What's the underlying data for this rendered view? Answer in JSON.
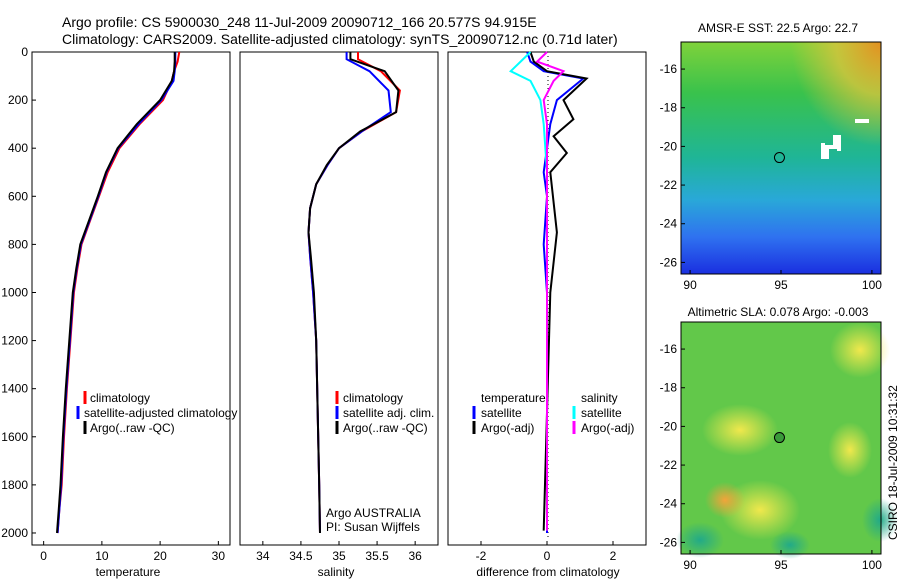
{
  "figure": {
    "title_line1": "Argo profile: CS 5900030_248 11-Jul-2009 20090712_166 20.577S 94.915E",
    "title_line2": "Climatology: CARS2009. Satellite-adjusted climatology: synTS_20090712.nc (0.71d later)",
    "side_stamp": "CSIRO 18-Jul-2009 10:31:32",
    "argo_line1": "Argo AUSTRALIA",
    "argo_line2": "PI: Susan Wijffels"
  },
  "legends": {
    "temp": [
      "climatology",
      "satellite-adjusted climatology",
      "Argo(..raw -QC)"
    ],
    "sal": [
      "climatology",
      "satellite adj. clim.",
      "Argo(..raw -QC)"
    ],
    "diff_t_head": "temperature",
    "diff_s_head": "salinity",
    "diff_t": [
      "satellite",
      "Argo(-adj)"
    ],
    "diff_s": [
      "satellite",
      "Argo(-adj)"
    ]
  },
  "colors": {
    "climatology": "#ff0000",
    "satellite": "#0000ff",
    "argo": "#000000",
    "sal_satellite": "#00ffff",
    "sal_argo": "#ff00ff"
  },
  "chart_data": [
    {
      "type": "line",
      "xlabel": "temperature",
      "ylabel": "",
      "xlim": [
        -2,
        32
      ],
      "ylim": [
        2050,
        0
      ],
      "xticks": [
        0,
        10,
        20,
        30
      ],
      "yticks": [
        0,
        200,
        400,
        600,
        800,
        1000,
        1200,
        1400,
        1600,
        1800,
        2000
      ],
      "series": [
        {
          "name": "climatology",
          "color": "#ff0000",
          "x": [
            23.3,
            23.0,
            22.4,
            22.0,
            20.5,
            16.5,
            13.0,
            11.0,
            9.5,
            8.0,
            6.5,
            5.8,
            5.2,
            4.6,
            4.0,
            3.5,
            3.1,
            2.7,
            2.4
          ],
          "y": [
            0,
            40,
            80,
            120,
            200,
            300,
            400,
            500,
            600,
            700,
            800,
            900,
            1000,
            1200,
            1400,
            1600,
            1800,
            1900,
            2000
          ]
        },
        {
          "name": "satellite-adjusted climatology",
          "color": "#0000ff",
          "x": [
            22.6,
            22.6,
            22.5,
            22.3,
            20.2,
            16.3,
            12.8,
            10.8,
            9.4,
            7.9,
            6.4,
            5.7,
            5.1,
            4.5,
            3.9,
            3.4,
            3.0,
            2.7,
            2.4
          ],
          "y": [
            0,
            40,
            80,
            120,
            200,
            300,
            400,
            500,
            600,
            700,
            800,
            900,
            1000,
            1200,
            1400,
            1600,
            1800,
            1900,
            2000
          ]
        },
        {
          "name": "Argo(..raw -QC)",
          "color": "#000000",
          "x": [
            22.5,
            22.5,
            22.4,
            22.0,
            20.0,
            16.0,
            12.7,
            10.7,
            9.3,
            7.8,
            6.3,
            5.6,
            5.0,
            4.4,
            3.8,
            3.3,
            2.9,
            2.6,
            2.3
          ],
          "y": [
            0,
            40,
            80,
            120,
            200,
            300,
            400,
            500,
            600,
            700,
            800,
            900,
            1000,
            1200,
            1400,
            1600,
            1800,
            1900,
            2000
          ]
        }
      ]
    },
    {
      "type": "line",
      "xlabel": "salinity",
      "ylabel": "",
      "xlim": [
        33.7,
        36.3
      ],
      "ylim": [
        2050,
        0
      ],
      "xticks": [
        34,
        34.5,
        35,
        35.5,
        36
      ],
      "yticks": [],
      "series": [
        {
          "name": "climatology",
          "color": "#ff0000",
          "x": [
            35.25,
            35.25,
            35.55,
            35.8,
            35.75,
            35.3,
            35.0,
            34.85,
            34.7,
            34.62,
            34.6,
            34.62,
            34.66,
            34.7,
            34.72,
            34.74,
            34.75
          ],
          "y": [
            0,
            30,
            80,
            160,
            250,
            330,
            400,
            470,
            550,
            650,
            750,
            850,
            1000,
            1200,
            1500,
            1800,
            2000
          ]
        },
        {
          "name": "satellite adj. clim.",
          "color": "#0000ff",
          "x": [
            35.1,
            35.1,
            35.4,
            35.65,
            35.68,
            35.3,
            35.0,
            34.85,
            34.7,
            34.62,
            34.6,
            34.62,
            34.66,
            34.7,
            34.72,
            34.74,
            34.75
          ],
          "y": [
            0,
            30,
            80,
            160,
            250,
            330,
            400,
            470,
            550,
            650,
            750,
            850,
            1000,
            1200,
            1500,
            1800,
            2000
          ]
        },
        {
          "name": "Argo(..raw -QC)",
          "color": "#000000",
          "x": [
            35.15,
            35.15,
            35.6,
            35.78,
            35.75,
            35.28,
            35.0,
            34.84,
            34.7,
            34.62,
            34.6,
            34.63,
            34.67,
            34.7,
            34.72,
            34.74,
            34.75
          ],
          "y": [
            0,
            30,
            80,
            160,
            250,
            330,
            400,
            470,
            550,
            650,
            750,
            850,
            1000,
            1200,
            1500,
            1800,
            2000
          ]
        }
      ]
    },
    {
      "type": "line",
      "xlabel": "difference from climatology",
      "ylabel": "",
      "xlim": [
        -3,
        3
      ],
      "ylim": [
        2050,
        0
      ],
      "xticks": [
        -2,
        0,
        2
      ],
      "yticks": [],
      "series": [
        {
          "name": "temperature satellite",
          "color": "#0000ff",
          "x": [
            -0.6,
            -0.5,
            -0.1,
            1.1,
            0.3,
            0.1,
            0.0,
            -0.1,
            0.0,
            -0.1,
            0.0,
            0.0,
            0.0
          ],
          "y": [
            0,
            40,
            80,
            110,
            200,
            300,
            400,
            500,
            600,
            800,
            1000,
            1500,
            2000
          ]
        },
        {
          "name": "temperature Argo(-adj)",
          "color": "#000000",
          "x": [
            -0.5,
            -0.4,
            0.0,
            1.2,
            0.5,
            0.8,
            0.2,
            0.6,
            0.1,
            0.3,
            0.1,
            0.0,
            -0.1
          ],
          "y": [
            0,
            40,
            80,
            110,
            200,
            280,
            350,
            420,
            500,
            750,
            1000,
            1500,
            1990
          ]
        },
        {
          "name": "salinity satellite",
          "color": "#00ffff",
          "x": [
            -0.5,
            -0.8,
            -1.1,
            -0.5,
            -0.2,
            -0.1,
            0.0,
            0.0,
            0.0,
            0.0
          ],
          "y": [
            0,
            40,
            80,
            120,
            200,
            300,
            500,
            800,
            1200,
            1990
          ]
        },
        {
          "name": "salinity Argo(-adj)",
          "color": "#ff00ff",
          "x": [
            0.0,
            -0.3,
            0.5,
            0.2,
            -0.1,
            0.0,
            0.0,
            0.0,
            0.0,
            0.0
          ],
          "y": [
            0,
            40,
            80,
            120,
            200,
            300,
            500,
            800,
            1200,
            1990
          ]
        }
      ]
    },
    {
      "type": "heatmap",
      "title": "AMSR-E SST: 22.5 Argo: 22.7",
      "xlim": [
        89.5,
        100.5
      ],
      "ylim": [
        -26.6,
        -14.6
      ],
      "xticks": [
        90,
        95,
        100
      ],
      "yticks": [
        -16,
        -18,
        -20,
        -22,
        -24,
        -26
      ],
      "marker": {
        "lon": 94.915,
        "lat": -20.577
      }
    },
    {
      "type": "heatmap",
      "title": "Altimetric SLA: 0.078 Argo: -0.003",
      "xlim": [
        89.5,
        100.5
      ],
      "ylim": [
        -26.6,
        -14.6
      ],
      "xticks": [
        90,
        95,
        100
      ],
      "yticks": [
        -16,
        -18,
        -20,
        -22,
        -24,
        -26
      ],
      "marker": {
        "lon": 94.915,
        "lat": -20.577
      }
    }
  ]
}
